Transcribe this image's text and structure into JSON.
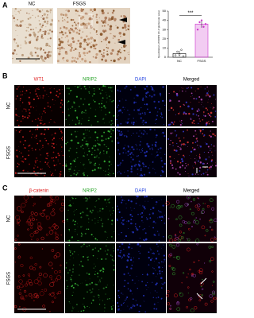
{
  "panel_a": {
    "label": "A",
    "image_labels": [
      "NC",
      "FSGS"
    ],
    "chart": {
      "type": "bar",
      "categories": [
        "NC",
        "FSGS"
      ],
      "values": [
        4,
        36
      ],
      "errors": [
        3,
        4
      ],
      "points": [
        [
          2,
          6,
          3,
          8,
          1
        ],
        [
          30,
          38,
          40,
          33,
          36
        ]
      ],
      "color": "#cc33cc",
      "ylabel": "Quantitation of NRIP2 (% of glomerular area)",
      "ylim": [
        0,
        50
      ],
      "yticks": [
        0,
        10,
        20,
        30,
        40,
        50
      ],
      "significance": "***"
    }
  },
  "panel_b": {
    "label": "B",
    "columns": [
      "WT1",
      "NRIP2",
      "DAPI",
      "Merged"
    ],
    "column_colors": [
      "#e02020",
      "#20a020",
      "#2040e0",
      "#000000"
    ],
    "rows": [
      "NC",
      "FSGS"
    ]
  },
  "panel_c": {
    "label": "C",
    "columns": [
      "β-catenin",
      "NRIP2",
      "DAPI",
      "Merged"
    ],
    "column_colors": [
      "#e02020",
      "#20a020",
      "#2040e0",
      "#000000"
    ],
    "rows": [
      "NC",
      "FSGS"
    ]
  }
}
